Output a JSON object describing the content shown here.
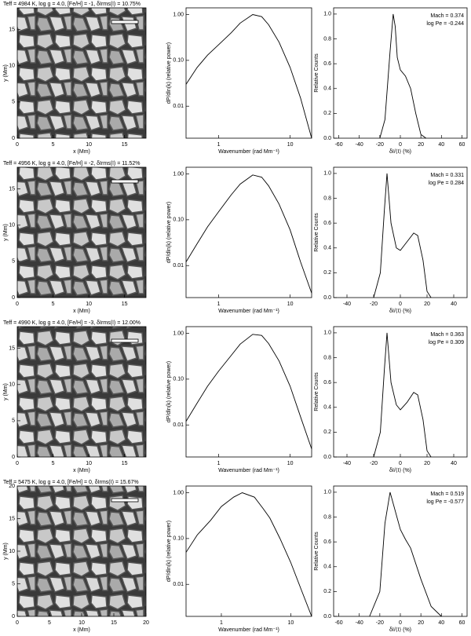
{
  "chart_data": [
    {
      "type": "image",
      "title": "Teff = 4984 K, log g = 4.0, [Fe/H] = -1, δIrms(I) = 10.75%",
      "xlabel": "x (Mm)",
      "ylabel": "y (Mm)",
      "xlim": [
        0,
        18
      ],
      "ylim": [
        0,
        18
      ],
      "xticks": [
        0,
        5,
        10,
        15
      ],
      "yticks": [
        0,
        5,
        10,
        15
      ]
    },
    {
      "type": "line",
      "xlabel": "Wavenumber (rad Mm⁻¹)",
      "ylabel": "dP/dln(k) (relative power)",
      "xscale": "log",
      "yscale": "log",
      "xlim": [
        0.35,
        20
      ],
      "ylim": [
        0.002,
        1.4
      ],
      "xticks": [
        1,
        10
      ],
      "yticks": [
        0.01,
        {
          "value": 0.1,
          "label": "0.10"
        },
        {
          "value": 1,
          "label": "1.00"
        }
      ],
      "x": [
        0.35,
        0.5,
        0.7,
        1,
        1.5,
        2,
        3,
        4,
        5,
        7,
        10,
        14,
        20
      ],
      "values": [
        0.03,
        0.07,
        0.13,
        0.22,
        0.4,
        0.65,
        1.0,
        0.9,
        0.6,
        0.25,
        0.07,
        0.015,
        0.002
      ],
      "color": "#000000"
    },
    {
      "type": "line",
      "xlabel": "δI/⟨I⟩ (%)",
      "ylabel": "Relative Counts",
      "xlim": [
        -65,
        65
      ],
      "ylim": [
        0,
        1.05
      ],
      "xticks": [
        -60,
        -40,
        -20,
        0,
        20,
        40,
        60
      ],
      "yticks": [
        {
          "value": 0,
          "label": "0.0"
        },
        0.2,
        0.4,
        0.6,
        0.8,
        {
          "value": 1,
          "label": "1.0"
        }
      ],
      "annotations": [
        "Mach = 0.374",
        "log Pe = -0.244"
      ],
      "x": [
        -20,
        -15,
        -10,
        -7,
        -5,
        -3,
        0,
        5,
        10,
        15,
        20,
        25
      ],
      "values": [
        0,
        0.15,
        0.7,
        1.0,
        0.9,
        0.65,
        0.55,
        0.5,
        0.4,
        0.2,
        0.03,
        0
      ],
      "color": "#000000"
    },
    {
      "type": "image",
      "title": "Teff = 4956 K, log g = 4.0, [Fe/H] = -2, δIrms(I) = 11.52%",
      "xlabel": "x (Mm)",
      "ylabel": "y (Mm)",
      "xlim": [
        0,
        18
      ],
      "ylim": [
        0,
        18
      ],
      "xticks": [
        0,
        5,
        10,
        15
      ],
      "yticks": [
        0,
        5,
        10,
        15
      ]
    },
    {
      "type": "line",
      "xlabel": "Wavenumber (rad Mm⁻¹)",
      "ylabel": "dP/dln(k) (relative power)",
      "xscale": "log",
      "yscale": "log",
      "xlim": [
        0.35,
        20
      ],
      "ylim": [
        0.002,
        1.4
      ],
      "xticks": [
        1,
        10
      ],
      "yticks": [
        0.01,
        {
          "value": 0.1,
          "label": "0.10"
        },
        {
          "value": 1,
          "label": "1.00"
        }
      ],
      "x": [
        0.35,
        0.5,
        0.7,
        1,
        1.5,
        2,
        3,
        4,
        5,
        7,
        10,
        14,
        20
      ],
      "values": [
        0.012,
        0.03,
        0.07,
        0.15,
        0.35,
        0.6,
        0.95,
        0.85,
        0.55,
        0.22,
        0.06,
        0.012,
        0.0025
      ],
      "color": "#000000"
    },
    {
      "type": "line",
      "xlabel": "δI/⟨I⟩ (%)",
      "ylabel": "Relative Counts",
      "xlim": [
        -50,
        50
      ],
      "ylim": [
        0,
        1.05
      ],
      "xticks": [
        -40,
        -20,
        0,
        20,
        40
      ],
      "yticks": [
        {
          "value": 0,
          "label": "0.0"
        },
        0.2,
        0.4,
        0.6,
        0.8,
        {
          "value": 1,
          "label": "1.0"
        }
      ],
      "annotations": [
        "Mach = 0.331",
        "log Pe = 0.284"
      ],
      "x": [
        -20,
        -15,
        -12,
        -10,
        -7,
        -3,
        0,
        5,
        10,
        13,
        17,
        20,
        23
      ],
      "values": [
        0,
        0.2,
        0.7,
        1.0,
        0.6,
        0.4,
        0.38,
        0.45,
        0.52,
        0.5,
        0.3,
        0.05,
        0
      ],
      "color": "#000000"
    },
    {
      "type": "image",
      "title": "Teff = 4990 K, log g = 4.0, [Fe/H] = -3, δIrms(I) = 12.00%",
      "xlabel": "x (Mm)",
      "ylabel": "y (Mm)",
      "xlim": [
        0,
        18
      ],
      "ylim": [
        0,
        18
      ],
      "xticks": [
        0,
        5,
        10,
        15
      ],
      "yticks": [
        0,
        5,
        10,
        15
      ]
    },
    {
      "type": "line",
      "xlabel": "Wavenumber (rad Mm⁻¹)",
      "ylabel": "dP/dln(k) (relative power)",
      "xscale": "log",
      "yscale": "log",
      "xlim": [
        0.35,
        20
      ],
      "ylim": [
        0.002,
        1.4
      ],
      "xticks": [
        1,
        10
      ],
      "yticks": [
        0.01,
        {
          "value": 0.1,
          "label": "0.10"
        },
        {
          "value": 1,
          "label": "1.00"
        }
      ],
      "x": [
        0.35,
        0.5,
        0.7,
        1,
        1.5,
        2,
        3,
        4,
        5,
        7,
        10,
        14,
        20
      ],
      "values": [
        0.012,
        0.03,
        0.07,
        0.15,
        0.33,
        0.58,
        0.95,
        0.9,
        0.6,
        0.25,
        0.07,
        0.015,
        0.003
      ],
      "color": "#000000"
    },
    {
      "type": "line",
      "xlabel": "δI/⟨I⟩ (%)",
      "ylabel": "Relative Counts",
      "xlim": [
        -50,
        50
      ],
      "ylim": [
        0,
        1.05
      ],
      "xticks": [
        -40,
        -20,
        0,
        20,
        40
      ],
      "yticks": [
        {
          "value": 0,
          "label": "0.0"
        },
        0.2,
        0.4,
        0.6,
        0.8,
        {
          "value": 1,
          "label": "1.0"
        }
      ],
      "annotations": [
        "Mach = 0.363",
        "log Pe = 0.309"
      ],
      "x": [
        -20,
        -15,
        -12,
        -10,
        -7,
        -3,
        0,
        5,
        10,
        13,
        17,
        20,
        23
      ],
      "values": [
        0,
        0.2,
        0.7,
        1.0,
        0.6,
        0.42,
        0.38,
        0.44,
        0.52,
        0.5,
        0.3,
        0.05,
        0
      ],
      "color": "#000000"
    },
    {
      "type": "image",
      "title": "Teff = 5475 K, log g = 4.0, [Fe/H] = 0, δIrms(I) = 15.67%",
      "xlabel": "x (Mm)",
      "ylabel": "y (Mm)",
      "xlim": [
        0,
        20
      ],
      "ylim": [
        0,
        20
      ],
      "xticks": [
        0,
        5,
        10,
        15,
        20
      ],
      "yticks": [
        0,
        5,
        10,
        15,
        20
      ]
    },
    {
      "type": "line",
      "xlabel": "Wavenumber (rad Mm⁻¹)",
      "ylabel": "dP/dln(k) (relative power)",
      "xscale": "log",
      "yscale": "log",
      "xlim": [
        0.31,
        20
      ],
      "ylim": [
        0.002,
        1.4
      ],
      "xticks": [
        1,
        10
      ],
      "yticks": [
        0.01,
        {
          "value": 0.1,
          "label": "0.10"
        },
        {
          "value": 1,
          "label": "1.00"
        }
      ],
      "x": [
        0.31,
        0.45,
        0.7,
        1,
        1.5,
        2,
        3,
        4,
        5,
        7,
        10,
        14,
        20
      ],
      "values": [
        0.05,
        0.12,
        0.25,
        0.5,
        0.8,
        1.0,
        0.8,
        0.45,
        0.28,
        0.1,
        0.03,
        0.008,
        0.002
      ],
      "color": "#000000"
    },
    {
      "type": "line",
      "xlabel": "δI/⟨I⟩ (%)",
      "ylabel": "Relative Counts",
      "xlim": [
        -65,
        65
      ],
      "ylim": [
        0,
        1.05
      ],
      "xticks": [
        -60,
        -40,
        -20,
        0,
        20,
        40,
        60
      ],
      "yticks": [
        {
          "value": 0,
          "label": "0.0"
        },
        0.2,
        0.4,
        0.6,
        0.8,
        {
          "value": 1,
          "label": "1.0"
        }
      ],
      "annotations": [
        "Mach = 0.519",
        "log Pe = -0.577"
      ],
      "x": [
        -30,
        -20,
        -15,
        -10,
        -5,
        0,
        5,
        10,
        20,
        30,
        40
      ],
      "values": [
        0,
        0.2,
        0.75,
        1.0,
        0.85,
        0.7,
        0.62,
        0.55,
        0.3,
        0.08,
        0
      ],
      "color": "#000000"
    }
  ]
}
